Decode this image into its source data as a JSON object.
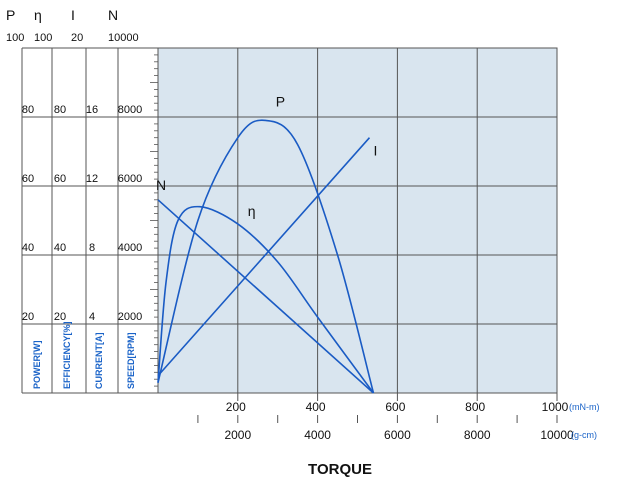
{
  "chart_data": {
    "type": "line",
    "title": "",
    "xlabel": "TORQUE",
    "x_axes": [
      {
        "unit": "(mN-m)",
        "ticks": [
          200,
          400,
          600,
          800,
          1000
        ],
        "range": [
          0,
          1000
        ]
      },
      {
        "unit": "(g-cm)",
        "ticks": [
          2000,
          4000,
          6000,
          8000,
          10000
        ],
        "range": [
          0,
          10000
        ]
      }
    ],
    "y_axes": [
      {
        "symbol": "P",
        "label": "POWER[W]",
        "range": [
          0,
          100
        ],
        "ticks": [
          20,
          40,
          60,
          80,
          100
        ]
      },
      {
        "symbol": "η",
        "label": "EFFICIENCY[%]",
        "range": [
          0,
          100
        ],
        "ticks": [
          20,
          40,
          60,
          80,
          100
        ]
      },
      {
        "symbol": "I",
        "label": "CURRENT[A]",
        "range": [
          0,
          20
        ],
        "ticks": [
          4,
          8,
          12,
          16,
          20
        ]
      },
      {
        "symbol": "N",
        "label": "SPEED[RPM]",
        "range": [
          0,
          10000
        ],
        "ticks": [
          2000,
          4000,
          6000,
          8000,
          10000
        ]
      }
    ],
    "grid": true,
    "series": [
      {
        "name": "P",
        "axis": "POWER[W]",
        "x_mNm": [
          0,
          100,
          200,
          270,
          350,
          450,
          540
        ],
        "values": [
          3,
          50,
          74,
          79,
          72,
          40,
          0
        ]
      },
      {
        "name": "η",
        "axis": "EFFICIENCY[%]",
        "x_mNm": [
          0,
          20,
          50,
          105,
          200,
          300,
          400,
          540
        ],
        "values": [
          3,
          32,
          50,
          54,
          49,
          38,
          22,
          0
        ]
      },
      {
        "name": "N",
        "axis": "SPEED[RPM]",
        "x_mNm": [
          0,
          540
        ],
        "values": [
          5600,
          0
        ]
      },
      {
        "name": "I",
        "axis": "CURRENT[A]",
        "x_mNm": [
          0,
          530
        ],
        "values": [
          1,
          14.8
        ]
      }
    ],
    "colors": {
      "curve": "#1a5bc4",
      "plot_bg": "#d9e5ef",
      "grid": "#555555",
      "unit_text": "#1a63c8"
    }
  }
}
